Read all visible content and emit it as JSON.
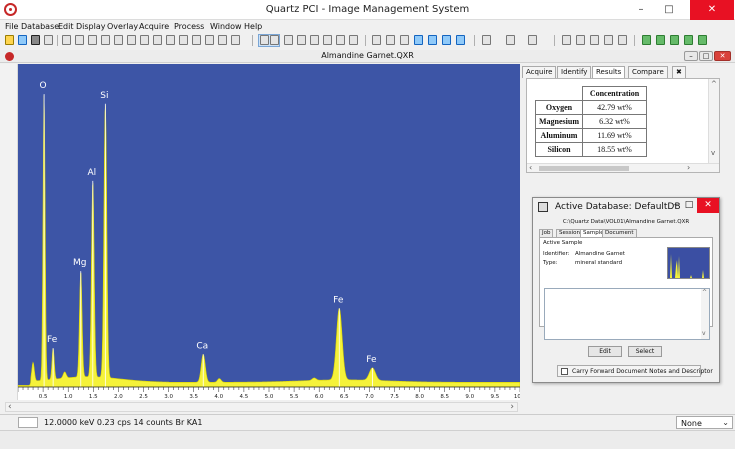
{
  "app": {
    "title": "Quartz PCI - Image Management System",
    "min": "–",
    "max": "□",
    "close": "✕"
  },
  "menu": [
    "File",
    "Database",
    "Edit",
    "Display",
    "Overlay",
    "Acquire",
    "Process",
    "Window",
    "Help"
  ],
  "toolbar": {
    "icons": [
      "open-icon",
      "save-icon",
      "print-icon",
      "copy-icon",
      "flask-icon",
      "measure-icon",
      "pencil-icon",
      "beaker-icon",
      "binoculars-icon",
      "atom-icon",
      "triangle-icon",
      "ruler-icon",
      "stamp-icon",
      "target-icon",
      "sphere-icon",
      "spiral-icon",
      "pointer-icon",
      "zoom-icon",
      "rect-select-icon",
      "ellipse-select-icon",
      "poly-select-icon",
      "lasso-icon",
      "grid-icon",
      "hash-icon",
      "text-icon",
      "line-icon",
      "polyline-icon",
      "rectangle-icon",
      "ellipse-icon",
      "polygon-icon",
      "freehand-icon",
      "check-icon",
      "color-icon",
      "line-style-icon",
      "view1-icon",
      "view2-icon",
      "view3-icon",
      "view4-icon",
      "camera-icon",
      "first-icon",
      "play-icon",
      "last-icon",
      "up-icon",
      "down-icon"
    ]
  },
  "document": {
    "title": "Almandine Garnet.QXR"
  },
  "spectrum": {
    "background_color": "#3d55a6",
    "fill_color": "#f5f23a",
    "x_unit": "keV",
    "x_range": [
      0.0,
      10.0
    ],
    "x_ticks": [
      "0.5",
      "1.0",
      "1.5",
      "2.0",
      "2.5",
      "3.0",
      "3.5",
      "4.0",
      "4.5",
      "5.0",
      "5.5",
      "6.0",
      "6.5",
      "7.0",
      "7.5",
      "8.0",
      "8.5",
      "9.0",
      "9.5",
      "10.0"
    ],
    "peaks": [
      {
        "label": "O",
        "energy": 0.52,
        "rel_height": 0.92
      },
      {
        "label": "Fe",
        "energy": 0.7,
        "rel_height": 0.1
      },
      {
        "label": "Mg",
        "energy": 1.25,
        "rel_height": 0.34
      },
      {
        "label": "Al",
        "energy": 1.49,
        "rel_height": 0.63
      },
      {
        "label": "Si",
        "energy": 1.74,
        "rel_height": 0.88
      },
      {
        "label": "Ca",
        "energy": 3.69,
        "rel_height": 0.09
      },
      {
        "label": "Fe",
        "energy": 6.4,
        "rel_height": 0.23
      },
      {
        "label": "Fe",
        "energy": 7.06,
        "rel_height": 0.04
      }
    ]
  },
  "panel": {
    "tabs": [
      "Acquire",
      "Identify",
      "Results",
      "Compare",
      "✖"
    ],
    "active_tab": "Results",
    "table": {
      "header": "Concentration",
      "rows": [
        {
          "element": "Oxygen",
          "value": "42.79 wt%"
        },
        {
          "element": "Magnesium",
          "value": "6.32 wt%"
        },
        {
          "element": "Aluminum",
          "value": "11.69 wt%"
        },
        {
          "element": "Silicon",
          "value": "18.55 wt%"
        }
      ]
    }
  },
  "dialog": {
    "title": "Active Database: DefaultDB",
    "path": "C:\\Quartz Data\\VOL01\\Almandine Garnet.QXR",
    "tabs": [
      "Job",
      "Session",
      "Sample",
      "Document"
    ],
    "active_tab": "Sample",
    "section": "Active Sample",
    "identifier_label": "Identifier:",
    "identifier_value": "Almandine Garnet",
    "type_label": "Type:",
    "type_value": "mineral standard",
    "notes_value": "",
    "edit_button": "Edit",
    "select_button": "Select",
    "checkbox_label": "Carry Forward Document Notes and Descriptor",
    "checkbox_checked": false
  },
  "statusbar": {
    "readout": "12.0000 keV   0.23 cps  14 counts  Br KA1",
    "mode": "None"
  }
}
